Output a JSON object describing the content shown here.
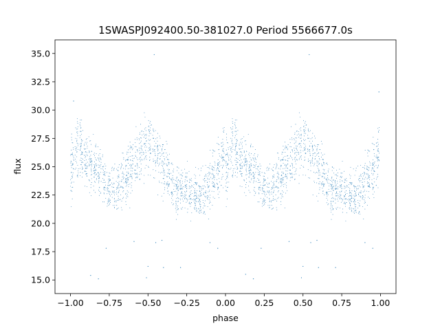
{
  "chart_data": {
    "type": "scatter",
    "title": "1SWASPJ092400.50-381027.0 Period 5566677.0s",
    "xlabel": "phase",
    "ylabel": "flux",
    "xlim": [
      -1.1,
      1.1
    ],
    "ylim": [
      13.8,
      36.2
    ],
    "xticks": [
      -1.0,
      -0.75,
      -0.5,
      -0.25,
      0.0,
      0.25,
      0.5,
      0.75,
      1.0
    ],
    "xtick_labels": [
      "−1.00",
      "−0.75",
      "−0.50",
      "−0.25",
      "0.00",
      "0.25",
      "0.50",
      "0.75",
      "1.00"
    ],
    "yticks": [
      15.0,
      17.5,
      20.0,
      22.5,
      25.0,
      27.5,
      30.0,
      32.5,
      35.0
    ],
    "ytick_labels": [
      "15.0",
      "17.5",
      "20.0",
      "22.5",
      "25.0",
      "27.5",
      "30.0",
      "32.5",
      "35.0"
    ],
    "grid": false,
    "point_color": "#1f77b4",
    "series": [
      {
        "profile_phase": [
          0.0,
          0.04,
          0.08,
          0.12,
          0.16,
          0.2,
          0.24,
          0.28,
          0.32,
          0.36,
          0.4,
          0.44,
          0.48,
          0.52,
          0.56,
          0.6,
          0.64,
          0.68,
          0.72,
          0.76,
          0.8,
          0.84,
          0.88,
          0.92,
          0.96,
          1.0
        ],
        "profile_flux": [
          24.5,
          26.8,
          26.2,
          25.3,
          25.0,
          24.5,
          23.0,
          22.8,
          23.5,
          24.0,
          25.0,
          26.0,
          27.0,
          27.3,
          26.0,
          25.0,
          23.8,
          23.0,
          23.2,
          22.8,
          22.5,
          22.6,
          23.0,
          24.0,
          25.0,
          26.5
        ],
        "profile_spread": [
          2.2,
          2.2,
          2.0,
          2.0,
          2.0,
          1.8,
          1.7,
          1.8,
          1.8,
          2.0,
          2.0,
          2.0,
          2.2,
          2.4,
          2.2,
          2.0,
          1.8,
          1.8,
          1.8,
          1.8,
          1.8,
          1.8,
          1.9,
          2.0,
          2.1,
          2.2
        ],
        "outliers": [
          {
            "x": -0.98,
            "y": 30.8
          },
          {
            "x": -0.87,
            "y": 15.4
          },
          {
            "x": -0.82,
            "y": 15.1
          },
          {
            "x": -0.77,
            "y": 17.8
          },
          {
            "x": -0.59,
            "y": 18.4
          },
          {
            "x": -0.51,
            "y": 15.2
          },
          {
            "x": -0.5,
            "y": 16.2
          },
          {
            "x": -0.46,
            "y": 34.9
          },
          {
            "x": -0.45,
            "y": 18.3
          },
          {
            "x": -0.41,
            "y": 18.5
          },
          {
            "x": -0.4,
            "y": 16.1
          },
          {
            "x": -0.29,
            "y": 16.1
          },
          {
            "x": -0.1,
            "y": 18.3
          },
          {
            "x": -0.05,
            "y": 17.8
          },
          {
            "x": 0.13,
            "y": 15.5
          },
          {
            "x": 0.18,
            "y": 15.1
          },
          {
            "x": 0.23,
            "y": 17.8
          },
          {
            "x": 0.41,
            "y": 18.4
          },
          {
            "x": 0.49,
            "y": 15.2
          },
          {
            "x": 0.5,
            "y": 16.2
          },
          {
            "x": 0.54,
            "y": 34.9
          },
          {
            "x": 0.55,
            "y": 18.3
          },
          {
            "x": 0.59,
            "y": 18.5
          },
          {
            "x": 0.6,
            "y": 16.1
          },
          {
            "x": 0.71,
            "y": 16.1
          },
          {
            "x": 0.9,
            "y": 18.3
          },
          {
            "x": 0.95,
            "y": 17.8
          },
          {
            "x": 0.99,
            "y": 31.6
          }
        ]
      }
    ]
  }
}
